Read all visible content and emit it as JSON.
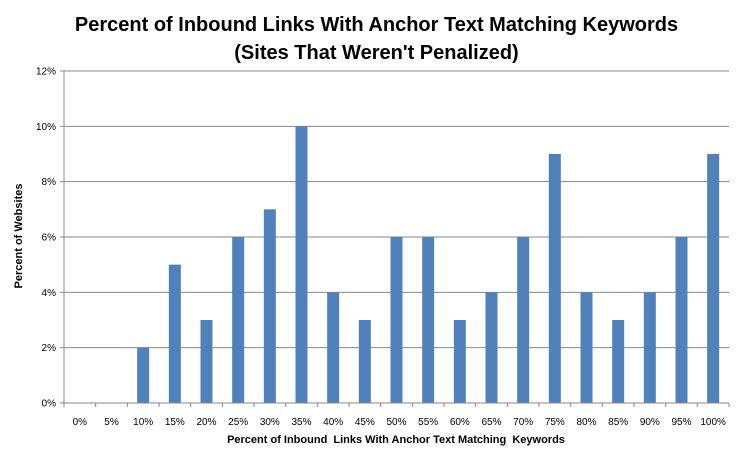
{
  "chart_data": {
    "type": "bar",
    "title": "Percent of Inbound Links With Anchor Text Matching Keywords",
    "subtitle": "(Sites That Weren't Penalized)",
    "xlabel": "Percent of Inbound  Links With Anchor Text Matching  Keywords",
    "ylabel": "Percent of Websites",
    "categories": [
      "0%",
      "5%",
      "10%",
      "15%",
      "20%",
      "25%",
      "30%",
      "35%",
      "40%",
      "45%",
      "50%",
      "55%",
      "60%",
      "65%",
      "70%",
      "75%",
      "80%",
      "85%",
      "90%",
      "95%",
      "100%"
    ],
    "values": [
      0,
      0,
      2,
      5,
      3,
      6,
      7,
      10,
      4,
      3,
      6,
      6,
      3,
      4,
      6,
      9,
      4,
      3,
      4,
      6,
      9
    ],
    "yticks": [
      "0%",
      "2%",
      "4%",
      "6%",
      "8%",
      "10%",
      "12%"
    ],
    "ylim": [
      0,
      12
    ],
    "grid": true,
    "legend": "none",
    "bar_color": "#4f81bd"
  }
}
